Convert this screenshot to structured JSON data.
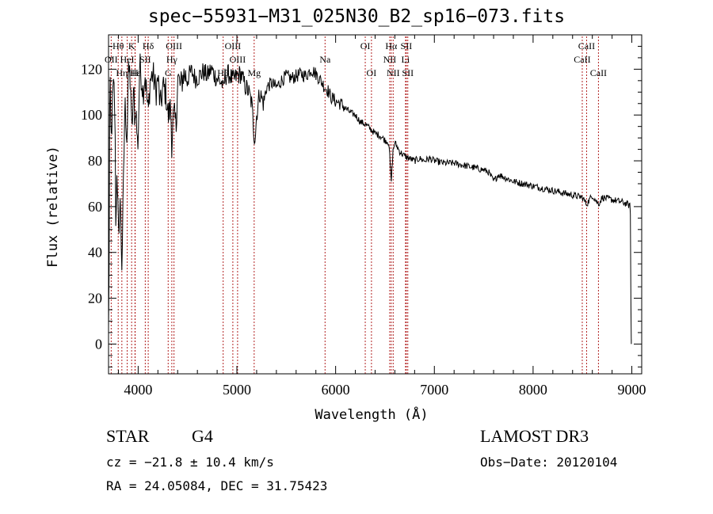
{
  "chart_data": {
    "type": "line",
    "title": "spec−55931−M31_025N30_B2_sp16−073.fits",
    "xlabel": "Wavelength (Å)",
    "ylabel": "Flux (relative)",
    "xlim": [
      3700,
      9100
    ],
    "ylim": [
      -13,
      135
    ],
    "x_ticks": [
      4000,
      5000,
      6000,
      7000,
      8000,
      9000
    ],
    "y_ticks": [
      0,
      20,
      40,
      60,
      80,
      100,
      120
    ],
    "line_color": "#000000",
    "marker_color": "#b22222",
    "spectrum_anchors": [
      [
        3700,
        5
      ],
      [
        3705,
        28
      ],
      [
        3712,
        108
      ],
      [
        3718,
        110
      ],
      [
        3725,
        86
      ],
      [
        3735,
        98
      ],
      [
        3745,
        110
      ],
      [
        3755,
        112
      ],
      [
        3765,
        100
      ],
      [
        3775,
        45
      ],
      [
        3785,
        80
      ],
      [
        3795,
        60
      ],
      [
        3805,
        38
      ],
      [
        3815,
        70
      ],
      [
        3825,
        50
      ],
      [
        3835,
        35
      ],
      [
        3845,
        55
      ],
      [
        3855,
        78
      ],
      [
        3865,
        105
      ],
      [
        3875,
        100
      ],
      [
        3888,
        88
      ],
      [
        3898,
        115
      ],
      [
        3910,
        120
      ],
      [
        3925,
        112
      ],
      [
        3933,
        90
      ],
      [
        3945,
        102
      ],
      [
        3958,
        110
      ],
      [
        3968,
        95
      ],
      [
        3975,
        105
      ],
      [
        3985,
        95
      ],
      [
        3995,
        85
      ],
      [
        4005,
        98
      ],
      [
        4015,
        122
      ],
      [
        4030,
        118
      ],
      [
        4050,
        110
      ],
      [
        4070,
        118
      ],
      [
        4102,
        100
      ],
      [
        4120,
        115
      ],
      [
        4150,
        118
      ],
      [
        4180,
        110
      ],
      [
        4200,
        116
      ],
      [
        4225,
        103
      ],
      [
        4250,
        112
      ],
      [
        4280,
        110
      ],
      [
        4305,
        99
      ],
      [
        4330,
        104
      ],
      [
        4340,
        88
      ],
      [
        4360,
        100
      ],
      [
        4385,
        95
      ],
      [
        4400,
        117
      ],
      [
        4430,
        112
      ],
      [
        4460,
        118
      ],
      [
        4500,
        116
      ],
      [
        4540,
        119
      ],
      [
        4580,
        116
      ],
      [
        4620,
        117
      ],
      [
        4660,
        119
      ],
      [
        4700,
        117
      ],
      [
        4740,
        120
      ],
      [
        4780,
        117
      ],
      [
        4820,
        115
      ],
      [
        4850,
        114
      ],
      [
        4861,
        110
      ],
      [
        4880,
        117
      ],
      [
        4920,
        118
      ],
      [
        4960,
        115
      ],
      [
        5000,
        117
      ],
      [
        5040,
        118
      ],
      [
        5080,
        113
      ],
      [
        5120,
        110
      ],
      [
        5150,
        105
      ],
      [
        5167,
        96
      ],
      [
        5172,
        92
      ],
      [
        5185,
        90
      ],
      [
        5200,
        100
      ],
      [
        5230,
        110
      ],
      [
        5270,
        105
      ],
      [
        5300,
        112
      ],
      [
        5350,
        114
      ],
      [
        5400,
        112
      ],
      [
        5450,
        115
      ],
      [
        5500,
        117
      ],
      [
        5550,
        116
      ],
      [
        5600,
        117
      ],
      [
        5650,
        118
      ],
      [
        5700,
        117
      ],
      [
        5750,
        120
      ],
      [
        5800,
        118
      ],
      [
        5850,
        115
      ],
      [
        5893,
        112
      ],
      [
        5920,
        111
      ],
      [
        5950,
        108
      ],
      [
        6000,
        106
      ],
      [
        6050,
        105
      ],
      [
        6100,
        103
      ],
      [
        6150,
        101
      ],
      [
        6200,
        100
      ],
      [
        6250,
        97
      ],
      [
        6300,
        96
      ],
      [
        6350,
        94
      ],
      [
        6400,
        92
      ],
      [
        6450,
        91
      ],
      [
        6500,
        89
      ],
      [
        6540,
        88
      ],
      [
        6563,
        70
      ],
      [
        6580,
        84
      ],
      [
        6600,
        88
      ],
      [
        6650,
        84
      ],
      [
        6700,
        82
      ],
      [
        6750,
        81
      ],
      [
        6800,
        80
      ],
      [
        6850,
        81
      ],
      [
        6900,
        80
      ],
      [
        6950,
        81
      ],
      [
        7000,
        80
      ],
      [
        7100,
        79
      ],
      [
        7200,
        79
      ],
      [
        7300,
        78
      ],
      [
        7400,
        77
      ],
      [
        7500,
        76
      ],
      [
        7550,
        75
      ],
      [
        7600,
        71
      ],
      [
        7650,
        74
      ],
      [
        7700,
        73
      ],
      [
        7800,
        71
      ],
      [
        7900,
        70
      ],
      [
        8000,
        69
      ],
      [
        8100,
        68
      ],
      [
        8200,
        67
      ],
      [
        8300,
        66
      ],
      [
        8400,
        65
      ],
      [
        8500,
        64
      ],
      [
        8542,
        61
      ],
      [
        8600,
        65
      ],
      [
        8662,
        61
      ],
      [
        8700,
        64
      ],
      [
        8800,
        63
      ],
      [
        8900,
        62
      ],
      [
        8960,
        61
      ],
      [
        8985,
        60
      ],
      [
        8990,
        20
      ],
      [
        8995,
        0
      ]
    ],
    "lines": [
      {
        "label": "Hθ",
        "wl": 3798,
        "row": 1
      },
      {
        "label": "OII",
        "wl": 3727,
        "row": 2
      },
      {
        "label": "Hη",
        "wl": 3835,
        "row": 3
      },
      {
        "label": "K",
        "wl": 3934,
        "row": 1
      },
      {
        "label": "HeI",
        "wl": 3889,
        "row": 2
      },
      {
        "label": "Hε",
        "wl": 3970,
        "row": 3
      },
      {
        "label": "Hδ",
        "wl": 4102,
        "row": 1
      },
      {
        "label": "SII",
        "wl": 4072,
        "row": 2
      },
      {
        "label": "H",
        "wl": 3968,
        "row": 3
      },
      {
        "label": "OIII",
        "wl": 4363,
        "row": 1
      },
      {
        "label": "Hγ",
        "wl": 4341,
        "row": 2
      },
      {
        "label": "G",
        "wl": 4304,
        "row": 3
      },
      {
        "label": "OIII",
        "wl": 4959,
        "row": 1
      },
      {
        "label": "OIII",
        "wl": 5007,
        "row": 2
      },
      {
        "label": "Hβ",
        "wl": 4861,
        "row": 3
      },
      {
        "label": "Mg",
        "wl": 5175,
        "row": 3
      },
      {
        "label": "Na",
        "wl": 5893,
        "row": 2
      },
      {
        "label": "OI",
        "wl": 6300,
        "row": 1
      },
      {
        "label": "OI",
        "wl": 6363,
        "row": 3
      },
      {
        "label": "Hα",
        "wl": 6563,
        "row": 1
      },
      {
        "label": "NII",
        "wl": 6548,
        "row": 2
      },
      {
        "label": "NII",
        "wl": 6583,
        "row": 3
      },
      {
        "label": "SII",
        "wl": 6716,
        "row": 1
      },
      {
        "label": "Li",
        "wl": 6708,
        "row": 2
      },
      {
        "label": "SII",
        "wl": 6731,
        "row": 3
      },
      {
        "label": "CaII",
        "wl": 8542,
        "row": 1
      },
      {
        "label": "CaII",
        "wl": 8498,
        "row": 2
      },
      {
        "label": "CaII",
        "wl": 8662,
        "row": 3
      }
    ]
  },
  "info": {
    "object_class": "STAR",
    "subclass": "G4",
    "survey": "LAMOST DR3",
    "redshift": "cz = −21.8 ± 10.4 km/s",
    "obs_date": "Obs−Date: 20120104",
    "coords": "RA =  24.05084, DEC =  31.75423"
  }
}
